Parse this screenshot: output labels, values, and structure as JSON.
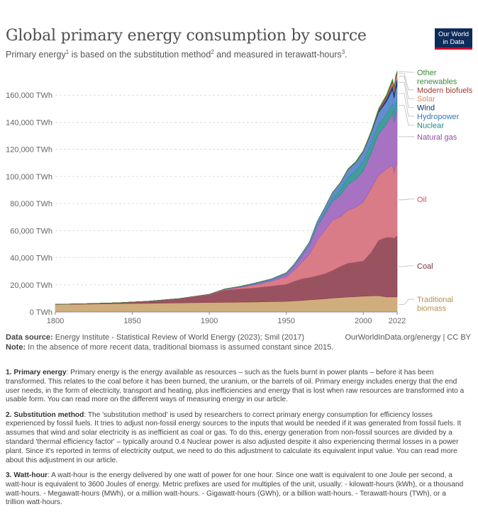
{
  "header": {
    "title": "Global primary energy consumption by source",
    "subtitle_part1": "Primary energy",
    "subtitle_sup1": "1",
    "subtitle_part2": " is based on the substitution method",
    "subtitle_sup2": "2",
    "subtitle_part3": " and measured in terawatt-hours",
    "subtitle_sup3": "3",
    "subtitle_part4": ".",
    "logo_line1": "Our World",
    "logo_line2": "in Data"
  },
  "footer": {
    "source_label": "Data source:",
    "source_text": " Energy Institute - Statistical Review of World Energy (2023); Smil (2017)",
    "site": "OurWorldInData.org/energy | CC BY",
    "note_label": "Note:",
    "note_text": " In the absence of more recent data, traditional biomass is assumed constant since 2015."
  },
  "notes": [
    {
      "label": "1. Primary energy",
      "text": ": Primary energy is the energy available as resources – such as the fuels burnt in power plants – before it has been transformed. This relates to the coal before it has been burned, the uranium, or the barrels of oil. Primary energy includes energy that the end user needs, in the form of electricity, transport and heating, plus inefficiencies and energy that is lost when raw resources are transformed into a usable form. You can read more on the different ways of measuring energy in our article."
    },
    {
      "label": "2. Substitution method",
      "text": ": The 'substitution method' is used by researchers to correct primary energy consumption for efficiency losses experienced by fossil fuels. It tries to adjust non-fossil energy sources to the inputs that would be needed if it was generated from fossil fuels. It assumes that wind and solar electricity is as inefficient as coal or gas. To do this, energy generation from non-fossil sources are divided by a standard 'thermal efficiency factor' – typically around 0.4 Nuclear power is also adjusted despite it also experiencing thermal losses in a power plant. Since it's reported in terms of electricity output, we need to do this adjustment to calculate its equivalent input value. You can read more about this adjustment in our article."
    },
    {
      "label": "3. Watt-hour",
      "text": ": A watt-hour is the energy delivered by one watt of power for one hour. Since one watt is equivalent to one Joule per second, a watt-hour is equivalent to 3600 Joules of energy. Metric prefixes are used for multiples of the unit, usually: - kilowatt-hours (kWh), or a thousand watt-hours. - Megawatt-hours (MWh), or a million watt-hours. - Gigawatt-hours (GWh), or a billion watt-hours. - Terawatt-hours (TWh), or a trillion watt-hours."
    }
  ],
  "chart_data": {
    "type": "area",
    "stacked": true,
    "title": "Global primary energy consumption by source",
    "ylabel": "TWh",
    "xlim": [
      1800,
      2022
    ],
    "ylim": [
      0,
      180000
    ],
    "x_ticks": [
      "1800",
      "1850",
      "1900",
      "1950",
      "2000",
      "2022"
    ],
    "x_tick_values": [
      1800,
      1850,
      1900,
      1950,
      2000,
      2022
    ],
    "y_ticks": [
      "0 TWh",
      "20,000 TWh",
      "40,000 TWh",
      "60,000 TWh",
      "80,000 TWh",
      "100,000 TWh",
      "120,000 TWh",
      "140,000 TWh",
      "160,000 TWh"
    ],
    "y_tick_values": [
      0,
      20000,
      40000,
      60000,
      80000,
      100000,
      120000,
      140000,
      160000
    ],
    "x": [
      1800,
      1820,
      1840,
      1860,
      1880,
      1900,
      1910,
      1920,
      1930,
      1940,
      1950,
      1955,
      1960,
      1965,
      1970,
      1975,
      1980,
      1985,
      1990,
      1995,
      2000,
      2005,
      2010,
      2015,
      2019,
      2020,
      2021,
      2022
    ],
    "series": [
      {
        "name": "Traditional biomass",
        "color": "#c9a26b",
        "values": [
          5556,
          5800,
          6100,
          6400,
          6700,
          7000,
          7100,
          7200,
          7400,
          7600,
          7800,
          8100,
          8500,
          8900,
          9300,
          9700,
          10200,
          10600,
          11000,
          11300,
          11600,
          11900,
          12000,
          11111,
          11111,
          11111,
          11111,
          11111
        ]
      },
      {
        "name": "Coal",
        "color": "#8b3b4a",
        "values": [
          97,
          300,
          700,
          1500,
          3000,
          5728,
          9000,
          9800,
          10500,
          11500,
          12603,
          14500,
          16000,
          16500,
          17500,
          18500,
          20500,
          23000,
          25000,
          25500,
          26000,
          32000,
          41000,
          44000,
          44000,
          43000,
          44500,
          44854
        ]
      },
      {
        "name": "Oil",
        "color": "#d56a78",
        "values": [
          0,
          0,
          0,
          0,
          100,
          181,
          500,
          1100,
          2300,
          3400,
          5444,
          8000,
          12000,
          17000,
          26000,
          32000,
          37000,
          36500,
          39000,
          40500,
          43500,
          47000,
          48000,
          50500,
          53000,
          48500,
          51500,
          53620
        ]
      },
      {
        "name": "Natural gas",
        "color": "#9a5fb8",
        "values": [
          0,
          0,
          0,
          0,
          30,
          64,
          200,
          300,
          500,
          900,
          2092,
          3000,
          4500,
          6500,
          10000,
          12000,
          14000,
          16000,
          19000,
          20500,
          23000,
          26000,
          30500,
          33000,
          38500,
          37500,
          39500,
          39413
        ]
      },
      {
        "name": "Nuclear",
        "color": "#25918c",
        "values": [
          0,
          0,
          0,
          0,
          0,
          0,
          0,
          0,
          0,
          0,
          0,
          0,
          7,
          70,
          200,
          1000,
          1900,
          4000,
          5500,
          6300,
          7000,
          7300,
          7100,
          6900,
          7100,
          6900,
          7100,
          6702
        ]
      },
      {
        "name": "Hydropower",
        "color": "#4a7ec7",
        "values": [
          0,
          0,
          0,
          0,
          0,
          100,
          150,
          500,
          700,
          900,
          1000,
          1500,
          2000,
          2500,
          3500,
          4000,
          4500,
          5000,
          5500,
          6000,
          7000,
          7500,
          8700,
          9600,
          10500,
          10800,
          10700,
          11011
        ]
      },
      {
        "name": "Wind",
        "color": "#0e2c66",
        "values": [
          0,
          0,
          0,
          0,
          0,
          0,
          0,
          0,
          0,
          0,
          0,
          0,
          0,
          0,
          0,
          0,
          0,
          0,
          10,
          20,
          80,
          250,
          900,
          2200,
          3500,
          4000,
          4600,
          5488
        ]
      },
      {
        "name": "Solar",
        "color": "#e08a5a",
        "values": [
          0,
          0,
          0,
          0,
          0,
          0,
          0,
          0,
          0,
          0,
          0,
          0,
          0,
          0,
          0,
          0,
          0,
          0,
          0,
          0,
          5,
          10,
          80,
          600,
          1800,
          2200,
          2700,
          3444
        ]
      },
      {
        "name": "Modern biofuels",
        "color": "#9d3b2a",
        "values": [
          0,
          0,
          0,
          0,
          0,
          0,
          0,
          0,
          0,
          0,
          0,
          0,
          0,
          0,
          0,
          0,
          100,
          200,
          300,
          350,
          400,
          600,
          1200,
          1400,
          1600,
          1500,
          1600,
          1275
        ]
      },
      {
        "name": "Other renewables",
        "color": "#3a8a3a",
        "values": [
          0,
          0,
          0,
          0,
          0,
          0,
          0,
          0,
          0,
          0,
          0,
          0,
          0,
          0,
          30,
          60,
          100,
          150,
          300,
          400,
          500,
          600,
          700,
          800,
          900,
          950,
          1000,
          1000
        ]
      }
    ],
    "legend": [
      {
        "name": "Other renewables",
        "lines": [
          "Other",
          "renewables"
        ],
        "color": "#3a8a3a"
      },
      {
        "name": "Modern biofuels",
        "lines": [
          "Modern biofuels"
        ],
        "color": "#9d3b2a"
      },
      {
        "name": "Solar",
        "lines": [
          "Solar"
        ],
        "color": "#e08a5a"
      },
      {
        "name": "Wind",
        "lines": [
          "Wind"
        ],
        "color": "#0e2c66"
      },
      {
        "name": "Hydropower",
        "lines": [
          "Hydropower"
        ],
        "color": "#3b72c0"
      },
      {
        "name": "Nuclear",
        "lines": [
          "Nuclear"
        ],
        "color": "#1a8a84"
      },
      {
        "name": "Natural gas",
        "lines": [
          "Natural gas"
        ],
        "color": "#8a4fa8"
      },
      {
        "name": "Oil",
        "lines": [
          "Oil"
        ],
        "color": "#c8505f"
      },
      {
        "name": "Coal",
        "lines": [
          "Coal"
        ],
        "color": "#7a2f3d"
      },
      {
        "name": "Traditional biomass",
        "lines": [
          "Traditional",
          "biomass"
        ],
        "color": "#b8904f"
      }
    ],
    "legend_position": "right"
  }
}
